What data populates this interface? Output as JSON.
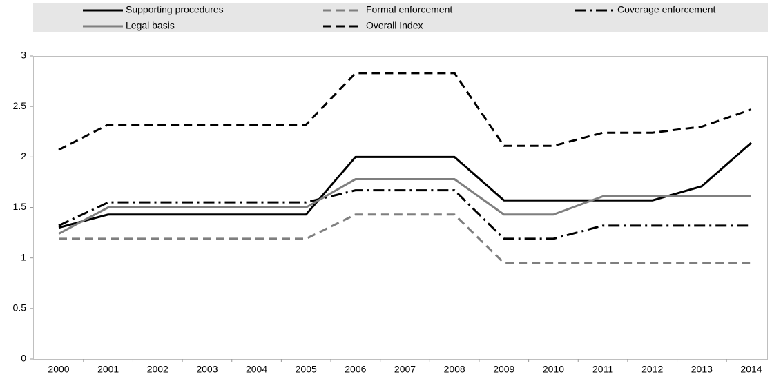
{
  "chart_data": {
    "type": "line",
    "categories": [
      "2000",
      "2001",
      "2002",
      "2003",
      "2004",
      "2005",
      "2006",
      "2007",
      "2008",
      "2009",
      "2010",
      "2011",
      "2012",
      "2013",
      "2014"
    ],
    "series": [
      {
        "name": "Supporting procedures",
        "color": "#000000",
        "dash": "solid",
        "values": [
          1.3,
          1.43,
          1.43,
          1.43,
          1.43,
          1.43,
          2.0,
          2.0,
          2.0,
          1.57,
          1.57,
          1.57,
          1.57,
          1.71,
          2.14
        ]
      },
      {
        "name": "Formal enforcement",
        "color": "#7f7f7f",
        "dash": "dashed",
        "values": [
          1.19,
          1.19,
          1.19,
          1.19,
          1.19,
          1.19,
          1.43,
          1.43,
          1.43,
          0.95,
          0.95,
          0.95,
          0.95,
          0.95,
          0.95
        ]
      },
      {
        "name": "Coverage enforcement",
        "color": "#000000",
        "dash": "dashdot",
        "values": [
          1.32,
          1.55,
          1.55,
          1.55,
          1.55,
          1.55,
          1.67,
          1.67,
          1.67,
          1.19,
          1.19,
          1.32,
          1.32,
          1.32,
          1.32
        ]
      },
      {
        "name": "Legal basis",
        "color": "#7f7f7f",
        "dash": "solid",
        "values": [
          1.24,
          1.5,
          1.5,
          1.5,
          1.5,
          1.5,
          1.78,
          1.78,
          1.78,
          1.43,
          1.43,
          1.61,
          1.61,
          1.61,
          1.61
        ]
      },
      {
        "name": "Overall Index",
        "color": "#000000",
        "dash": "dashed",
        "values": [
          2.07,
          2.32,
          2.32,
          2.32,
          2.32,
          2.32,
          2.83,
          2.83,
          2.83,
          2.11,
          2.11,
          2.24,
          2.24,
          2.3,
          2.47
        ]
      }
    ],
    "ylim": [
      0,
      3
    ],
    "yticks": [
      0,
      0.5,
      1,
      1.5,
      2,
      2.5,
      3
    ],
    "grid": false
  }
}
